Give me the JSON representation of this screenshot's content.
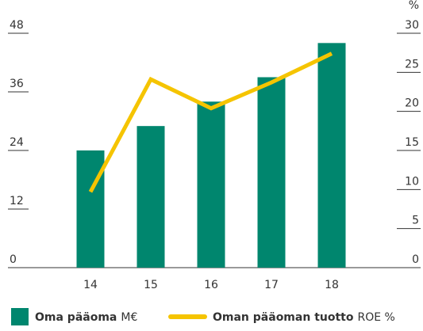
{
  "chart_data": {
    "type": "bar_line",
    "categories": [
      "14",
      "15",
      "16",
      "17",
      "18"
    ],
    "series": [
      {
        "name": "Oma pääoma",
        "unit": "M€",
        "color": "#00866e",
        "type": "bar",
        "values": [
          24,
          29,
          34,
          39,
          46
        ]
      },
      {
        "name": "Oman pääoman tuotto",
        "unit": "ROE %",
        "color": "#f5c400",
        "type": "line",
        "axis": "y2",
        "values": [
          9.7,
          24.1,
          20.4,
          23.7,
          27.4
        ]
      }
    ],
    "ylim": [
      0,
      48
    ],
    "yticks": [
      0,
      12,
      24,
      36,
      48
    ],
    "y2lim": [
      0,
      30
    ],
    "y2ticks": [
      0,
      5,
      10,
      15,
      20,
      25,
      30
    ],
    "y2label": "%"
  }
}
